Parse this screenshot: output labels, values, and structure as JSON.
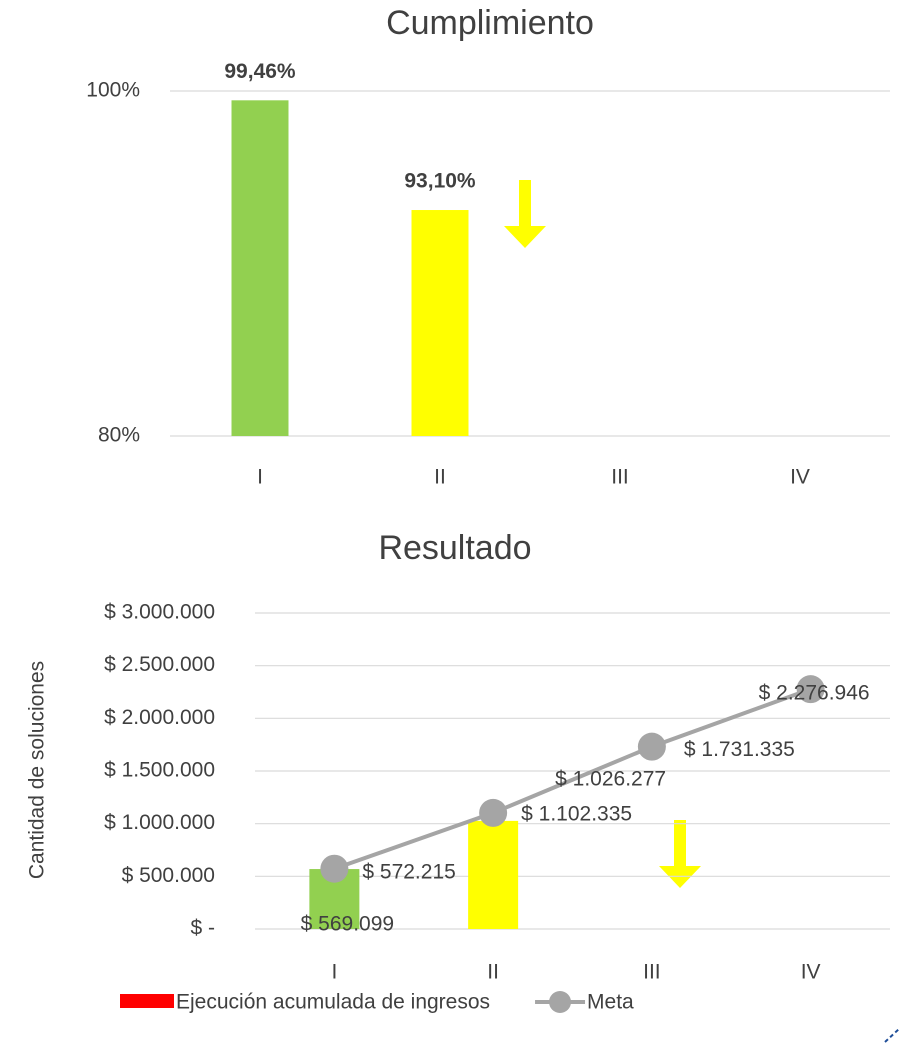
{
  "chart_data": [
    {
      "type": "bar",
      "title": "Cumplimiento",
      "categories": [
        "I",
        "II",
        "III",
        "IV"
      ],
      "values": [
        99.46,
        93.1,
        null,
        null
      ],
      "value_labels": [
        "99,46%",
        "93,10%",
        null,
        null
      ],
      "colors": [
        "#92d050",
        "#ffff00",
        null,
        null
      ],
      "ylim": [
        80,
        100
      ],
      "yticks": [
        {
          "value": 80,
          "label": "80%"
        },
        {
          "value": 100,
          "label": "100%"
        }
      ],
      "grid": true
    },
    {
      "type": "combo",
      "title": "Resultado",
      "y_label": "Cantidad de soluciones",
      "categories": [
        "I",
        "II",
        "III",
        "IV"
      ],
      "series": [
        {
          "name": "Ejecución acumulada de ingresos",
          "kind": "bar",
          "color": "#ff0000",
          "colors": [
            "#92d050",
            "#ffff00",
            null,
            null
          ],
          "values": [
            569099,
            1026277,
            null,
            null
          ],
          "value_labels": [
            "$ 569.099",
            "$ 1.026.277",
            null,
            null
          ]
        },
        {
          "name": "Meta",
          "kind": "line",
          "color": "#a5a5a5",
          "values": [
            572215,
            1102335,
            1731335,
            2276946
          ],
          "value_labels": [
            "$ 572.215",
            "$ 1.102.335",
            "$ 1.731.335",
            "$ 2.276.946"
          ]
        }
      ],
      "ylim": [
        0,
        3000000
      ],
      "yticks": [
        {
          "value": 0,
          "label": "$ -"
        },
        {
          "value": 500000,
          "label": "$ 500.000"
        },
        {
          "value": 1000000,
          "label": "$ 1.000.000"
        },
        {
          "value": 1500000,
          "label": "$ 1.500.000"
        },
        {
          "value": 2000000,
          "label": "$ 2.000.000"
        },
        {
          "value": 2500000,
          "label": "$ 2.500.000"
        },
        {
          "value": 3000000,
          "label": "$ 3.000.000"
        }
      ],
      "grid": true
    }
  ]
}
